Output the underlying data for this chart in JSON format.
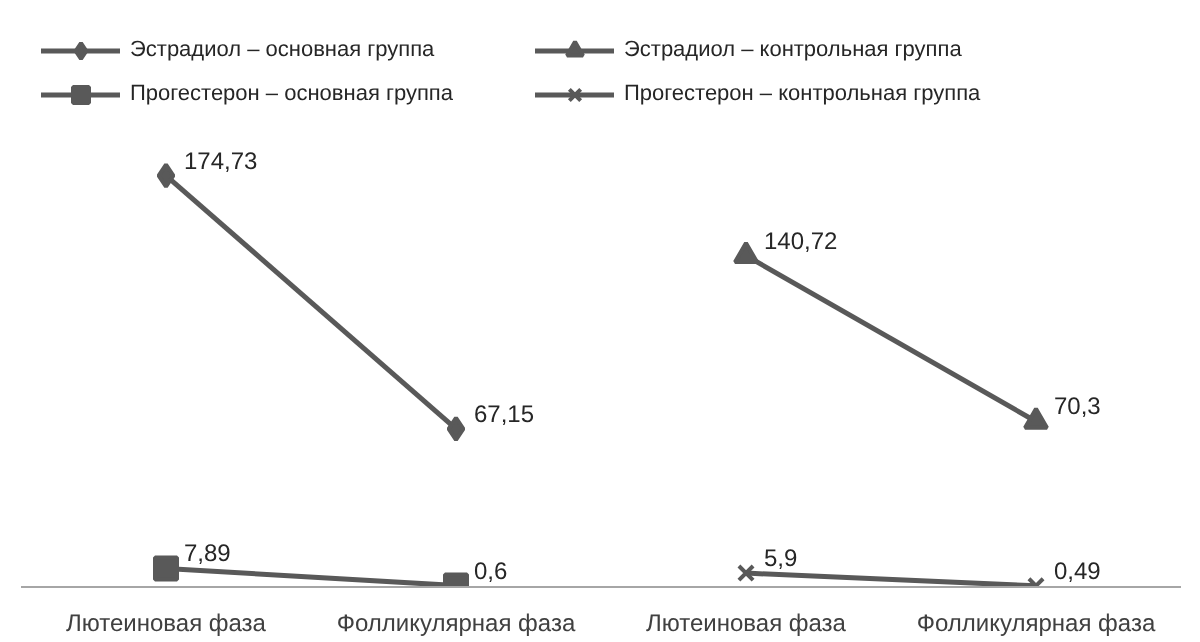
{
  "chart_data": {
    "type": "line",
    "categories": [
      "Лютеиновая фаза",
      "Фолликулярная фаза",
      "Лютеиновая фаза",
      "Фолликулярная фаза"
    ],
    "series": [
      {
        "name": "Эстрадиол – основная группа",
        "color": "#595959",
        "marker": "diamond",
        "values": [
          174.73,
          67.15,
          null,
          null
        ],
        "value_labels": [
          "174,73",
          "67,15",
          null,
          null
        ]
      },
      {
        "name": "Прогестерон – основная группа",
        "color": "#595959",
        "marker": "square",
        "values": [
          7.89,
          0.6,
          null,
          null
        ],
        "value_labels": [
          "7,89",
          "0,6",
          null,
          null
        ]
      },
      {
        "name": "Эстрадиол – контрольная группа",
        "color": "#595959",
        "marker": "triangle",
        "values": [
          null,
          null,
          140.72,
          70.3
        ],
        "value_labels": [
          null,
          null,
          "140,72",
          "70,3"
        ]
      },
      {
        "name": "Прогестерон – контрольная группа",
        "color": "#595959",
        "marker": "cross",
        "values": [
          null,
          null,
          5.9,
          0.49
        ],
        "value_labels": [
          null,
          null,
          "5,9",
          "0,49"
        ]
      }
    ],
    "legend": "top",
    "line_style": "solid"
  }
}
